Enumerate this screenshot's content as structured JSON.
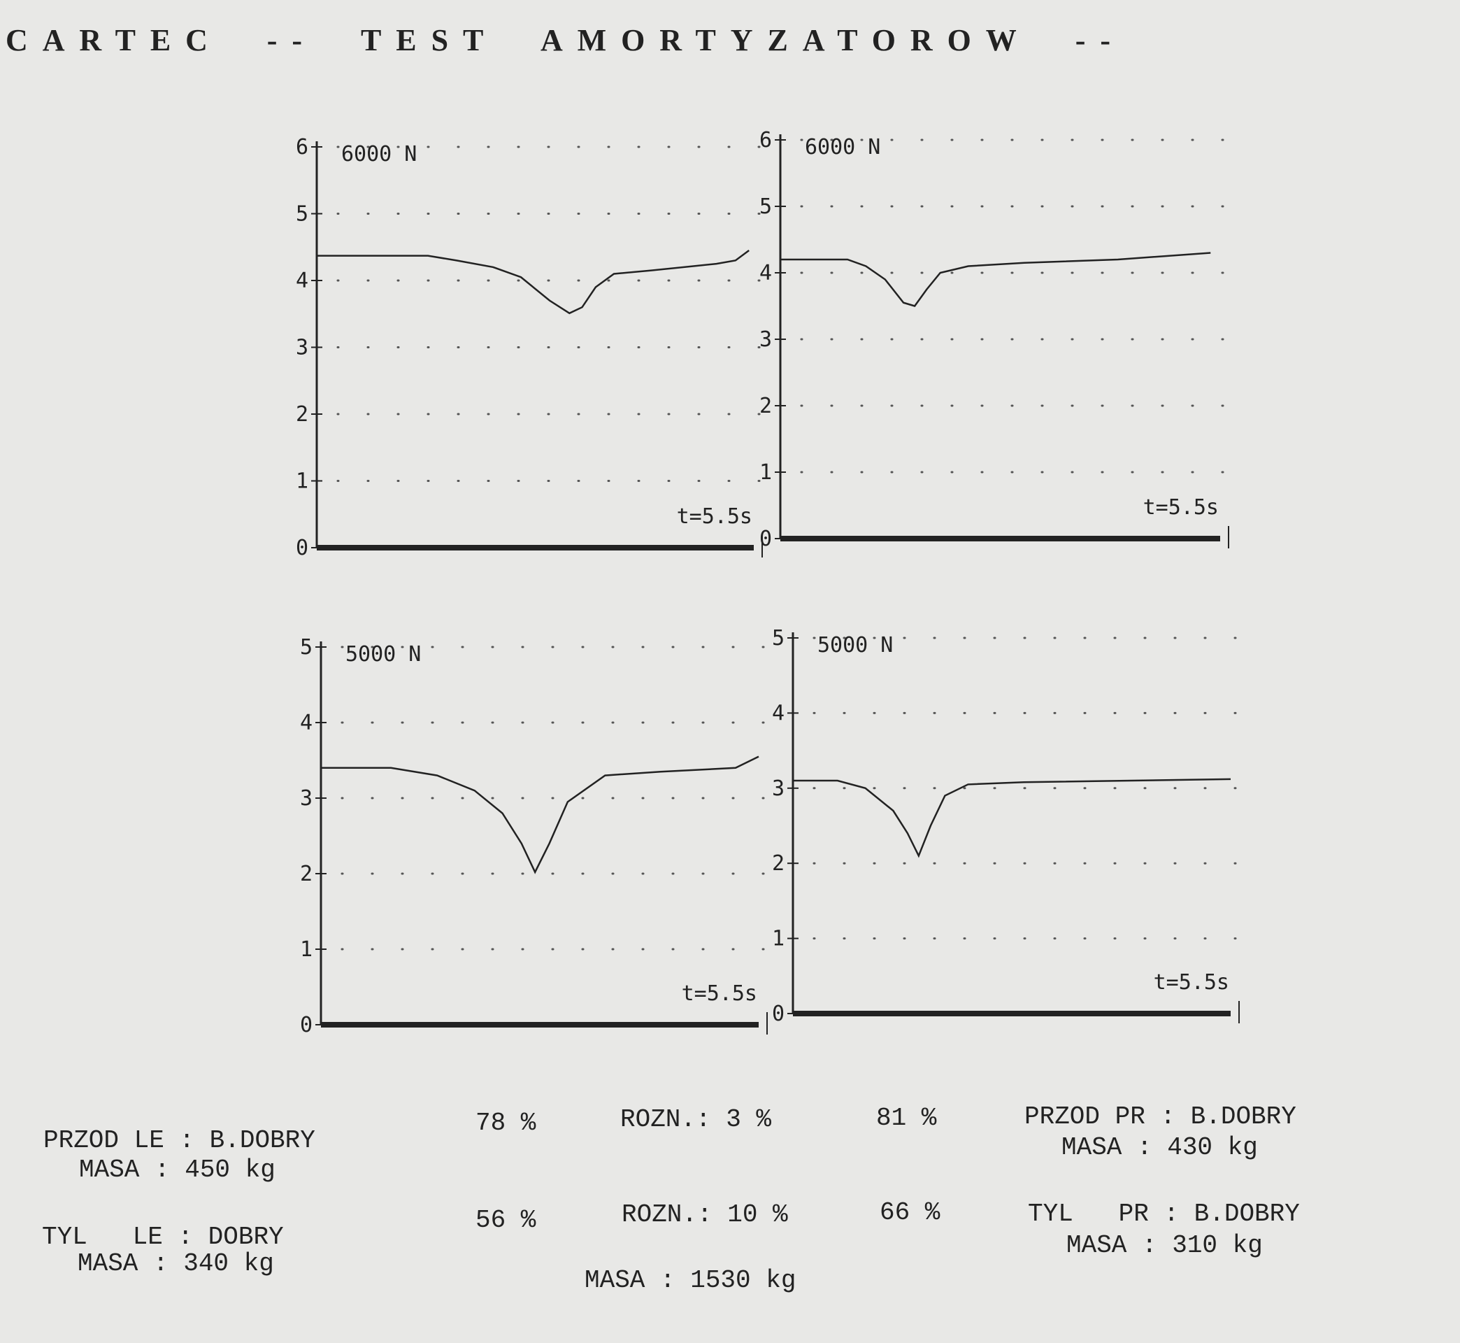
{
  "header": {
    "title": "CARTEC  --  TEST  AMORTYZATOROW  --"
  },
  "chart_data": [
    {
      "type": "line",
      "title": "6000 N",
      "annotation": "t=5.5s",
      "color": "#222222",
      "x": [
        0,
        1.4,
        1.76,
        2.22,
        2.57,
        2.93,
        3.18,
        3.34,
        3.51,
        3.74,
        4.21,
        5.03,
        5.27,
        5.44
      ],
      "values": [
        4.37,
        4.37,
        4.3,
        4.2,
        4.05,
        3.7,
        3.51,
        3.6,
        3.9,
        4.1,
        4.15,
        4.25,
        4.3,
        4.45
      ],
      "xlim": [
        0,
        5.5
      ],
      "ylim": [
        0,
        6
      ],
      "yticks": [
        0,
        1,
        2,
        3,
        4,
        5,
        6
      ],
      "grid": true
    },
    {
      "type": "line",
      "title": "6000 N",
      "annotation": "t=5.5s",
      "color": "#222222",
      "x": [
        0,
        0.84,
        1.07,
        1.31,
        1.54,
        1.68,
        1.83,
        2.0,
        2.35,
        3.05,
        4.22,
        5.38
      ],
      "values": [
        4.2,
        4.2,
        4.1,
        3.9,
        3.55,
        3.5,
        3.75,
        4.0,
        4.1,
        4.15,
        4.2,
        4.3
      ],
      "xlim": [
        0,
        5.5
      ],
      "ylim": [
        0,
        6
      ],
      "yticks": [
        0,
        1,
        2,
        3,
        4,
        5,
        6
      ],
      "grid": true
    },
    {
      "type": "line",
      "title": "5000 N",
      "annotation": "t=5.5s",
      "color": "#222222",
      "x": [
        0,
        0.88,
        1.46,
        1.93,
        2.28,
        2.52,
        2.69,
        2.87,
        3.1,
        3.57,
        4.27,
        5.21,
        5.5
      ],
      "values": [
        3.4,
        3.4,
        3.3,
        3.1,
        2.8,
        2.4,
        2.02,
        2.4,
        2.95,
        3.3,
        3.35,
        3.4,
        3.55
      ],
      "xlim": [
        0,
        5.5
      ],
      "ylim": [
        0,
        5
      ],
      "yticks": [
        0,
        1,
        2,
        3,
        4,
        5
      ],
      "grid": true
    },
    {
      "type": "line",
      "title": "5000 N",
      "annotation": "t=5.5s",
      "color": "#222222",
      "x": [
        0,
        0.56,
        0.91,
        1.26,
        1.44,
        1.58,
        1.73,
        1.91,
        2.2,
        2.9,
        5.5
      ],
      "values": [
        3.1,
        3.1,
        3.0,
        2.7,
        2.4,
        2.1,
        2.5,
        2.9,
        3.05,
        3.08,
        3.12
      ],
      "xlim": [
        0,
        5.5
      ],
      "ylim": [
        0,
        5
      ],
      "yticks": [
        0,
        1,
        2,
        3,
        4,
        5
      ],
      "grid": true
    }
  ],
  "report": {
    "lines": [
      "PRZOD LE : B.DOBRY",
      "MASA : 450 kg",
      "78 %",
      "ROZN.: 3 %",
      "81 %",
      "PRZOD PR : B.DOBRY",
      "MASA : 430 kg",
      "TYL   LE : DOBRY",
      "MASA : 340 kg",
      "56 %",
      "ROZN.: 10 %",
      "66 %",
      "TYL   PR : B.DOBRY",
      "MASA : 310 kg",
      "MASA : 1530 kg"
    ]
  }
}
